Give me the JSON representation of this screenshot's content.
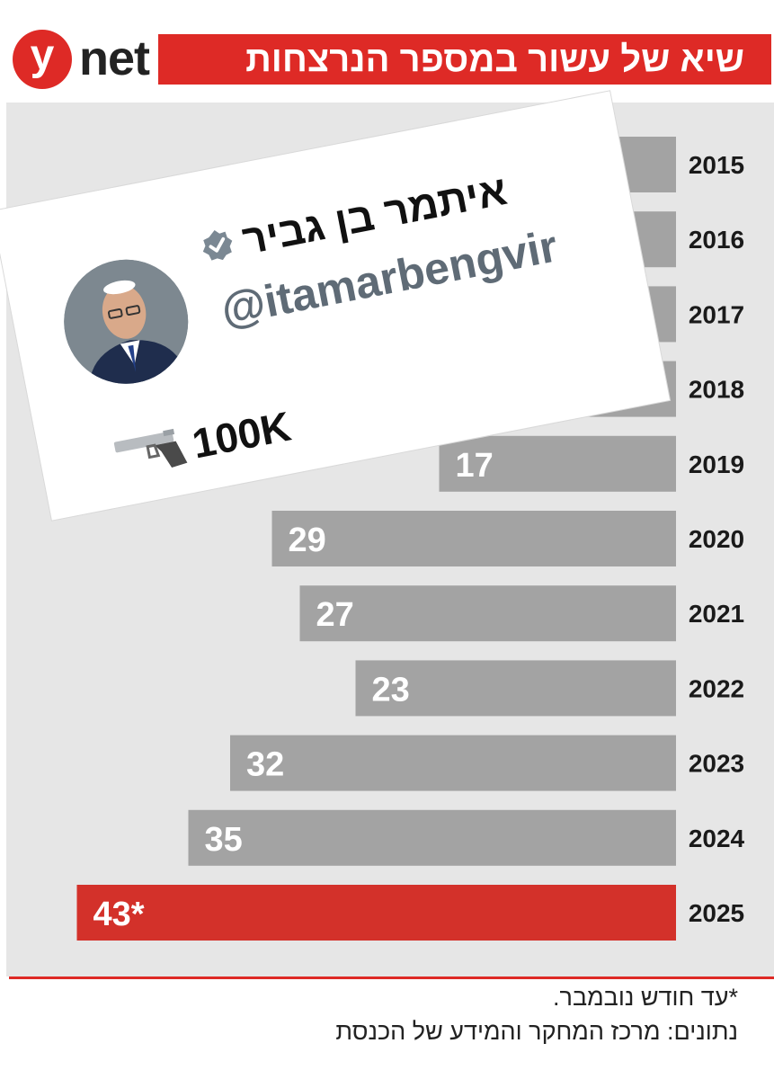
{
  "header": {
    "logo_mark": "y",
    "logo_word": "net",
    "title": "שיא של עשור במספר הנרצחות"
  },
  "tweet": {
    "name": "איתמר בן גביר",
    "handle": "@itamarbengvir",
    "bio": "100K",
    "bio_icon": "pistol-icon",
    "verified_icon": "verified-badge-icon"
  },
  "chart_data": {
    "type": "bar",
    "orientation": "horizontal",
    "title": "שיא של עשור במספר הנרצחות",
    "categories": [
      "2015",
      "2016",
      "2017",
      "2018",
      "2019",
      "2020",
      "2021",
      "2022",
      "2023",
      "2024",
      "2025"
    ],
    "values": [
      16,
      13,
      12,
      15,
      17,
      29,
      27,
      23,
      32,
      35,
      43
    ],
    "value_labels": [
      null,
      null,
      null,
      null,
      "17",
      "29",
      "27",
      "23",
      "32",
      "35",
      "43*"
    ],
    "highlight_index": 10,
    "colors": {
      "bar": "#a3a3a3",
      "highlight": "#d3312a",
      "panel": "#e6e6e6"
    },
    "xlim": [
      0,
      45
    ],
    "grid": false,
    "legend": "none"
  },
  "footer": {
    "footnote": "*עד חודש נובמבר.",
    "source": "נתונים: מרכז המחקר והמידע של הכנסת"
  }
}
